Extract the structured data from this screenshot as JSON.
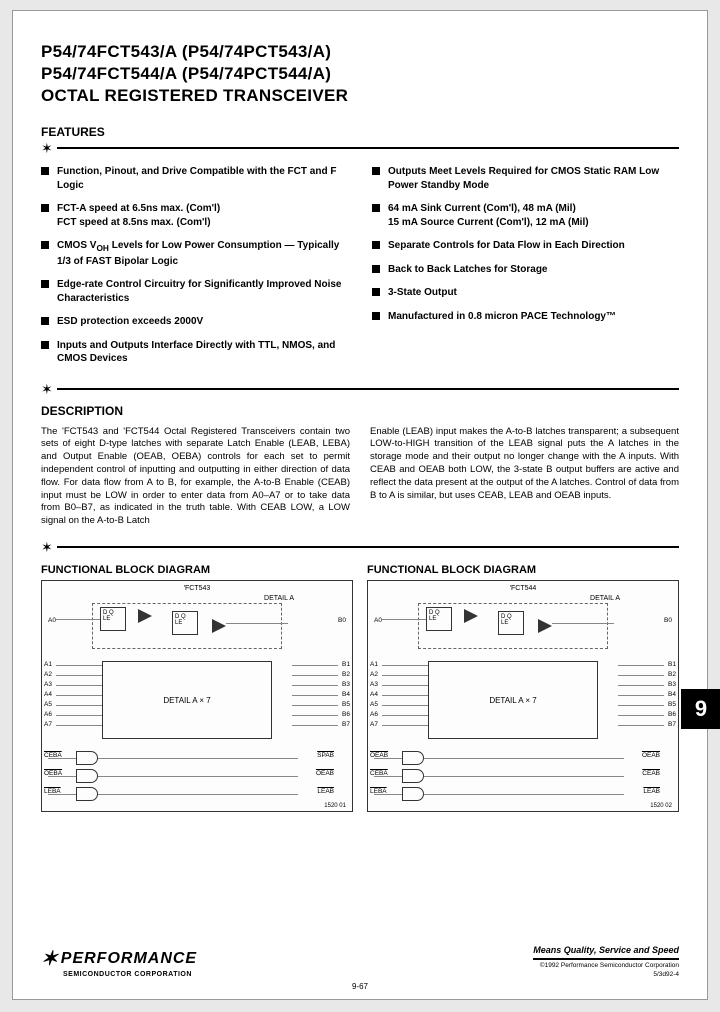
{
  "title_line1": "P54/74FCT543/A (P54/74PCT543/A)",
  "title_line2": "P54/74FCT544/A (P54/74PCT544/A)",
  "title_line3": "OCTAL REGISTERED TRANSCEIVER",
  "sections": {
    "features_head": "FEATURES",
    "description_head": "DESCRIPTION",
    "diagram_head": "FUNCTIONAL BLOCK DIAGRAM"
  },
  "features_left": [
    "Function, Pinout, and Drive Compatible with the FCT and F Logic",
    "FCT-A speed at 6.5ns max. (Com'l)\nFCT speed at 8.5ns max. (Com'l)",
    "CMOS VOH Levels for Low Power Consumption — Typically 1/3 of FAST Bipolar Logic",
    "Edge-rate Control Circuitry for Significantly Improved Noise Characteristics",
    "ESD protection exceeds 2000V",
    "Inputs and Outputs Interface Directly with TTL, NMOS, and CMOS Devices"
  ],
  "features_right": [
    "Outputs Meet Levels Required for CMOS Static RAM Low Power Standby Mode",
    "64 mA Sink Current (Com'l), 48 mA (Mil)\n15 mA Source Current (Com'l), 12 mA (Mil)",
    "Separate Controls for Data Flow in Each Direction",
    "Back to Back Latches for Storage",
    "3-State Output",
    "Manufactured in 0.8 micron PACE Technology™"
  ],
  "description_p1": "The 'FCT543 and 'FCT544 Octal Registered Transceivers contain two sets of eight D-type latches with separate Latch Enable (LEAB, LEBA) and Output Enable (OEAB, OEBA) controls for each set to permit independent control of inputting and outputting in either direction of data flow. For data flow from A to B, for example, the A-to-B Enable (CEAB) input must be LOW in order to enter data from A0–A7 or to take data from B0–B7, as indicated in the truth table. With CEAB LOW, a LOW signal on the A-to-B Latch",
  "description_p2": "Enable (LEAB) input makes the A-to-B latches transparent; a subsequent LOW-to-HIGH transition of the LEAB signal puts the A latches in the storage mode and their output no longer change with the A inputs. With CEAB and OEAB both LOW, the 3-state B output buffers are active and reflect the data present at the output of the A latches. Control of data from B to A is similar, but uses CEAB, LEAB and OEAB inputs.",
  "diagram_left": {
    "chip": "'FCT543",
    "detail_label": "DETAIL A",
    "block_label": "DETAIL A × 7",
    "pins_left_top": "A0",
    "pins_left": [
      "A1",
      "A2",
      "A3",
      "A4",
      "A5",
      "A6",
      "A7"
    ],
    "pins_right_top": "B0",
    "pins_right": [
      "B1",
      "B2",
      "B3",
      "B4",
      "B5",
      "B6",
      "B7"
    ],
    "ctrl_left": [
      "CEBA",
      "OEBA",
      "LEBA"
    ],
    "ctrl_right": [
      "SPAB",
      "OEAB",
      "LEAB"
    ],
    "footnote": "1520 01"
  },
  "diagram_right": {
    "chip": "'FCT544",
    "detail_label": "DETAIL A",
    "block_label": "DETAIL A × 7",
    "pins_left_top": "A0",
    "pins_left": [
      "A1",
      "A2",
      "A3",
      "A4",
      "A5",
      "A6",
      "A7"
    ],
    "pins_right_top": "B0",
    "pins_right": [
      "B1",
      "B2",
      "B3",
      "B4",
      "B5",
      "B6",
      "B7"
    ],
    "ctrl_left": [
      "OEAB",
      "CEBA",
      "LEBA"
    ],
    "ctrl_right": [
      "OEAB",
      "CEAB",
      "LEAB"
    ],
    "footnote": "1520 02"
  },
  "side_tab": "9",
  "logo_main": "PERFORMANCE",
  "logo_sub": "SEMICONDUCTOR CORPORATION",
  "tagline": "Means Quality, Service and Speed",
  "copyright": "©1992 Performance Semiconductor Corporation",
  "docnum": "5/3d92-4",
  "page_number": "9-67",
  "colors": {
    "text": "#000000",
    "bg": "#ffffff",
    "page_bg": "#e8e8e8",
    "border": "#333333"
  }
}
